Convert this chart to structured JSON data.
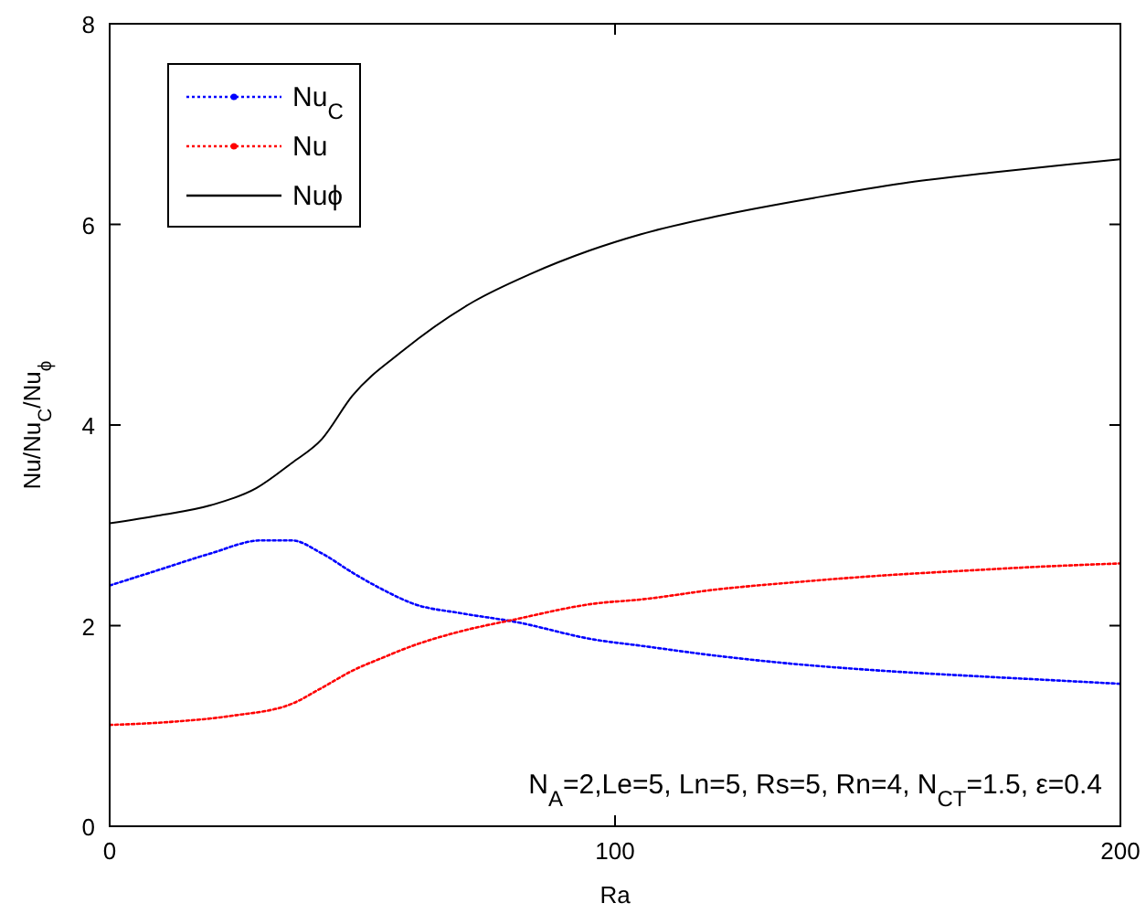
{
  "chart_data": {
    "type": "line",
    "xlabel": "Ra",
    "ylabel": "Nu/Nu$_{C}$/Nu$_{ϕ}$",
    "xlim": [
      0,
      200
    ],
    "xticks": [
      0,
      100,
      200
    ],
    "ylim": [
      0,
      8
    ],
    "yticks": [
      0,
      2,
      4,
      6,
      8
    ],
    "grid": false,
    "legend": "top left",
    "series": [
      {
        "name": "Nu$_{C}$",
        "color": "#0000ff",
        "line_style": "dotted",
        "x": [
          0,
          10,
          20,
          30,
          36,
          42,
          48,
          54,
          60,
          70,
          80,
          96,
          105,
          120,
          135,
          153,
          170,
          185,
          200
        ],
        "values": [
          2.4,
          2.56,
          2.72,
          2.85,
          2.85,
          2.72,
          2.53,
          2.36,
          2.22,
          2.12,
          2.04,
          1.86,
          1.8,
          1.7,
          1.62,
          1.55,
          1.5,
          1.46,
          1.42
        ]
      },
      {
        "name": "Nu",
        "color": "#ff0000",
        "line_style": "dotted",
        "x": [
          0,
          12,
          24,
          36,
          42,
          48,
          54,
          60,
          70,
          80,
          96,
          105,
          120,
          135,
          153,
          170,
          185,
          200
        ],
        "values": [
          1.01,
          1.04,
          1.1,
          1.22,
          1.38,
          1.55,
          1.68,
          1.8,
          1.95,
          2.06,
          2.22,
          2.26,
          2.36,
          2.43,
          2.5,
          2.55,
          2.59,
          2.62
        ]
      },
      {
        "name": "Nuϕ",
        "color": "#000000",
        "line_style": "solid",
        "x": [
          0,
          10,
          20,
          29,
          36,
          42,
          48,
          58,
          72,
          83,
          95,
          105,
          120,
          140,
          157,
          175,
          190,
          200
        ],
        "values": [
          3.02,
          3.1,
          3.2,
          3.37,
          3.62,
          3.86,
          4.29,
          4.74,
          5.23,
          5.5,
          5.74,
          5.9,
          6.08,
          6.27,
          6.41,
          6.52,
          6.6,
          6.65
        ]
      }
    ],
    "annotations": [
      "N$_{A}$=2,Le=5, Ln=5, Rs=5, Rn=4, N$_{CT}$=1.5, ε=0.4"
    ]
  }
}
